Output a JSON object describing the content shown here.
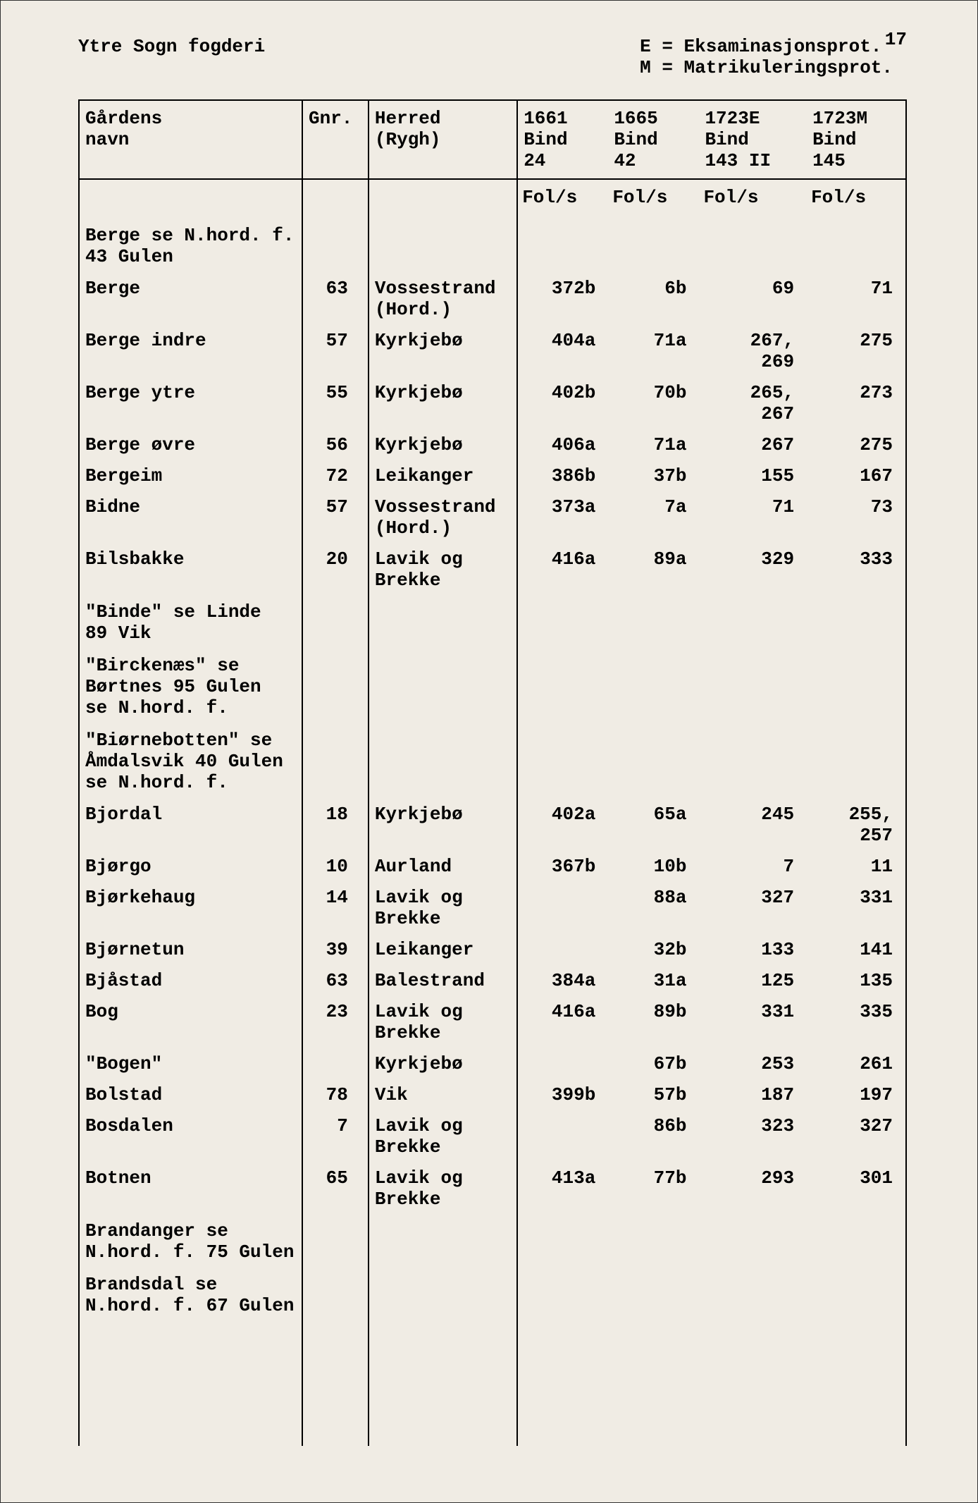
{
  "page_number": "17",
  "header_title": "Ytre Sogn fogderi",
  "legend": {
    "line1": "E = Eksaminasjonsprot.",
    "line2": "M = Matrikuleringsprot."
  },
  "columns": {
    "name": "Gårdens\nnavn",
    "gnr": "Gnr.",
    "herred": "Herred\n(Rygh)",
    "c1661": "1661\nBind\n24",
    "c1665": "1665\nBind\n42",
    "c1723e": "1723E\nBind\n143 II",
    "c1723m": "1723M\nBind\n145"
  },
  "subheader": "Fol/s",
  "rows": [
    {
      "type": "note",
      "name": "Berge se N.hord. f.\n43 Gulen"
    },
    {
      "type": "data",
      "name": "Berge",
      "gnr": "63",
      "herred": "Vossestrand\n(Hord.)",
      "c1661": "372b",
      "c1665": "6b",
      "c1723e": "69",
      "c1723m": "71"
    },
    {
      "type": "data",
      "name": "Berge indre",
      "gnr": "57",
      "herred": "Kyrkjebø",
      "c1661": "404a",
      "c1665": "71a",
      "c1723e": "267,\n269",
      "c1723m": "275"
    },
    {
      "type": "data",
      "name": "Berge ytre",
      "gnr": "55",
      "herred": "Kyrkjebø",
      "c1661": "402b",
      "c1665": "70b",
      "c1723e": "265,\n267",
      "c1723m": "273"
    },
    {
      "type": "data",
      "name": "Berge øvre",
      "gnr": "56",
      "herred": "Kyrkjebø",
      "c1661": "406a",
      "c1665": "71a",
      "c1723e": "267",
      "c1723m": "275"
    },
    {
      "type": "data",
      "name": "Bergeim",
      "gnr": "72",
      "herred": "Leikanger",
      "c1661": "386b",
      "c1665": "37b",
      "c1723e": "155",
      "c1723m": "167"
    },
    {
      "type": "data",
      "name": "Bidne",
      "gnr": "57",
      "herred": "Vossestrand\n(Hord.)",
      "c1661": "373a",
      "c1665": "7a",
      "c1723e": "71",
      "c1723m": "73"
    },
    {
      "type": "data",
      "name": "Bilsbakke",
      "gnr": "20",
      "herred": "Lavik og\nBrekke",
      "c1661": "416a",
      "c1665": "89a",
      "c1723e": "329",
      "c1723m": "333"
    },
    {
      "type": "note",
      "name": "\"Binde\" se Linde\n89 Vik"
    },
    {
      "type": "note",
      "name": "\"Birckenæs\" se\nBørtnes 95 Gulen\nse N.hord. f."
    },
    {
      "type": "note",
      "name": "\"Biørnebotten\" se\nÅmdalsvik 40 Gulen\nse N.hord. f."
    },
    {
      "type": "data",
      "name": "Bjordal",
      "gnr": "18",
      "herred": "Kyrkjebø",
      "c1661": "402a",
      "c1665": "65a",
      "c1723e": "245",
      "c1723m": "255,\n257"
    },
    {
      "type": "data",
      "name": "Bjørgo",
      "gnr": "10",
      "herred": "Aurland",
      "c1661": "367b",
      "c1665": "10b",
      "c1723e": "7",
      "c1723m": "11"
    },
    {
      "type": "data",
      "name": "Bjørkehaug",
      "gnr": "14",
      "herred": "Lavik og\nBrekke",
      "c1661": "",
      "c1665": "88a",
      "c1723e": "327",
      "c1723m": "331"
    },
    {
      "type": "data",
      "name": "Bjørnetun",
      "gnr": "39",
      "herred": "Leikanger",
      "c1661": "",
      "c1665": "32b",
      "c1723e": "133",
      "c1723m": "141"
    },
    {
      "type": "data",
      "name": "Bjåstad",
      "gnr": "63",
      "herred": "Balestrand",
      "c1661": "384a",
      "c1665": "31a",
      "c1723e": "125",
      "c1723m": "135"
    },
    {
      "type": "data",
      "name": "Bog",
      "gnr": "23",
      "herred": "Lavik og\nBrekke",
      "c1661": "416a",
      "c1665": "89b",
      "c1723e": "331",
      "c1723m": "335"
    },
    {
      "type": "data",
      "name": "\"Bogen\"",
      "gnr": "",
      "herred": "Kyrkjebø",
      "c1661": "",
      "c1665": "67b",
      "c1723e": "253",
      "c1723m": "261"
    },
    {
      "type": "data",
      "name": "Bolstad",
      "gnr": "78",
      "herred": "Vik",
      "c1661": "399b",
      "c1665": "57b",
      "c1723e": "187",
      "c1723m": "197"
    },
    {
      "type": "data",
      "name": "Bosdalen",
      "gnr": "7",
      "herred": "Lavik og\nBrekke",
      "c1661": "",
      "c1665": "86b",
      "c1723e": "323",
      "c1723m": "327"
    },
    {
      "type": "data",
      "name": "Botnen",
      "gnr": "65",
      "herred": "Lavik og\nBrekke",
      "c1661": "413a",
      "c1665": "77b",
      "c1723e": "293",
      "c1723m": "301"
    },
    {
      "type": "note",
      "name": "Brandanger se\nN.hord. f. 75 Gulen"
    },
    {
      "type": "note",
      "name": "Brandsdal se\nN.hord. f. 67 Gulen"
    }
  ]
}
